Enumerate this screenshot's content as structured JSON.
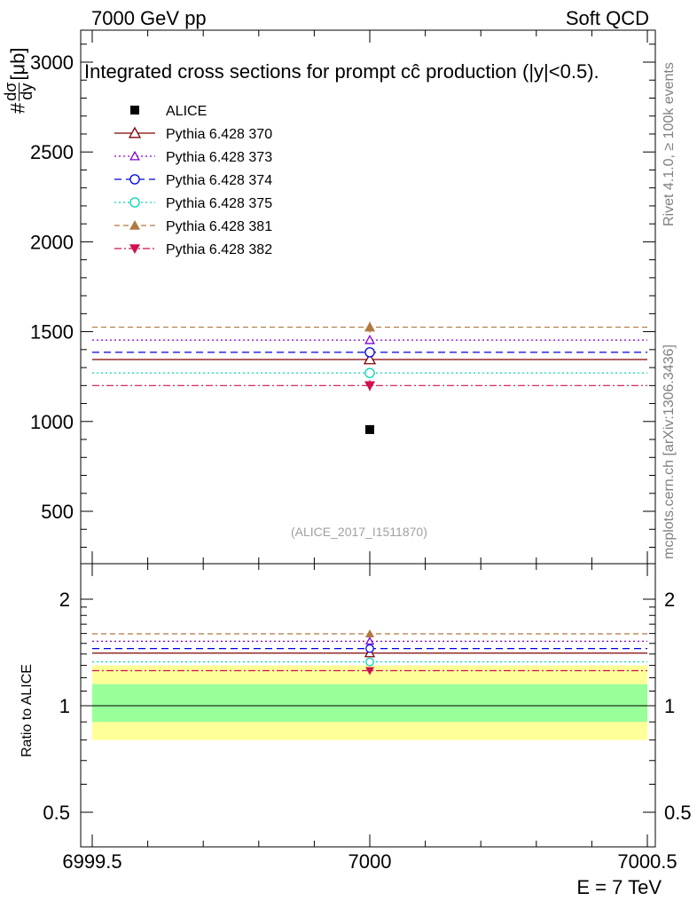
{
  "header": {
    "left": "7000 GeV pp",
    "right": "Soft QCD"
  },
  "side": {
    "rivet": "Rivet 4.1.0, ≥ 100k events",
    "mcplots": "mcplots.cern.ch [arXiv:1306.3436]"
  },
  "chart_data": {
    "type": "scatter",
    "title": "Integrated cross sections for prompt cĉ production (|y|<0.5).",
    "ylabel": "#dσ/dy [μb]",
    "ylabel_parts": {
      "prefix": "#",
      "num": "dσ",
      "den": "dy",
      "unit": "[μb]"
    },
    "xlabel": "E = 7 TeV",
    "watermark": "(ALICE_2017_I1511870)",
    "x_range": [
      6999.5,
      7000.5
    ],
    "ylim": [
      250,
      3200
    ],
    "y_ticks": [
      500,
      1000,
      1500,
      2000,
      2500,
      3000
    ],
    "y_tick_labels": [
      "500",
      "1000",
      "1500",
      "2000",
      "2500",
      "3000"
    ],
    "x_ticks": [
      6999.5,
      7000,
      7000.5
    ],
    "x_tick_labels": [
      "6999.5",
      "7000",
      "7000.5"
    ],
    "data": {
      "name": "ALICE",
      "x": 7000,
      "y": 955,
      "color": "#000000",
      "marker": "square"
    },
    "series": [
      {
        "name": "Pythia 6.428 370",
        "value": 1345,
        "err": 20,
        "color": "#800000",
        "dash": "",
        "marker": "triangle-open"
      },
      {
        "name": "Pythia 6.428 373",
        "value": 1453,
        "err": 20,
        "color": "#8000d0",
        "dash": "2,3",
        "marker": "triangle-open-small"
      },
      {
        "name": "Pythia 6.428 374",
        "value": 1385,
        "err": 20,
        "color": "#0000e0",
        "dash": "8,5",
        "marker": "circle-open"
      },
      {
        "name": "Pythia 6.428 375",
        "value": 1270,
        "err": 20,
        "color": "#00d8b0",
        "dash": "2,3",
        "marker": "circle-open"
      },
      {
        "name": "Pythia 6.428 381",
        "value": 1525,
        "err": 30,
        "color": "#b07840",
        "dash": "6,4",
        "marker": "triangle-filled"
      },
      {
        "name": "Pythia 6.428 382",
        "value": 1200,
        "err": 30,
        "color": "#d01050",
        "dash": "8,3,2,3",
        "marker": "triangle-down-filled"
      }
    ],
    "ratio": {
      "ylabel": "Ratio to ALICE",
      "ylim": [
        0.42,
        2.35
      ],
      "y_ticks": [
        0.5,
        1,
        2
      ],
      "y_tick_labels": [
        "0.5",
        "1",
        "2"
      ],
      "band_inner": [
        0.9,
        1.15
      ],
      "band_outer": [
        0.8,
        1.3
      ],
      "band_inner_color": "#99ff99",
      "band_outer_color": "#ffff99"
    }
  }
}
